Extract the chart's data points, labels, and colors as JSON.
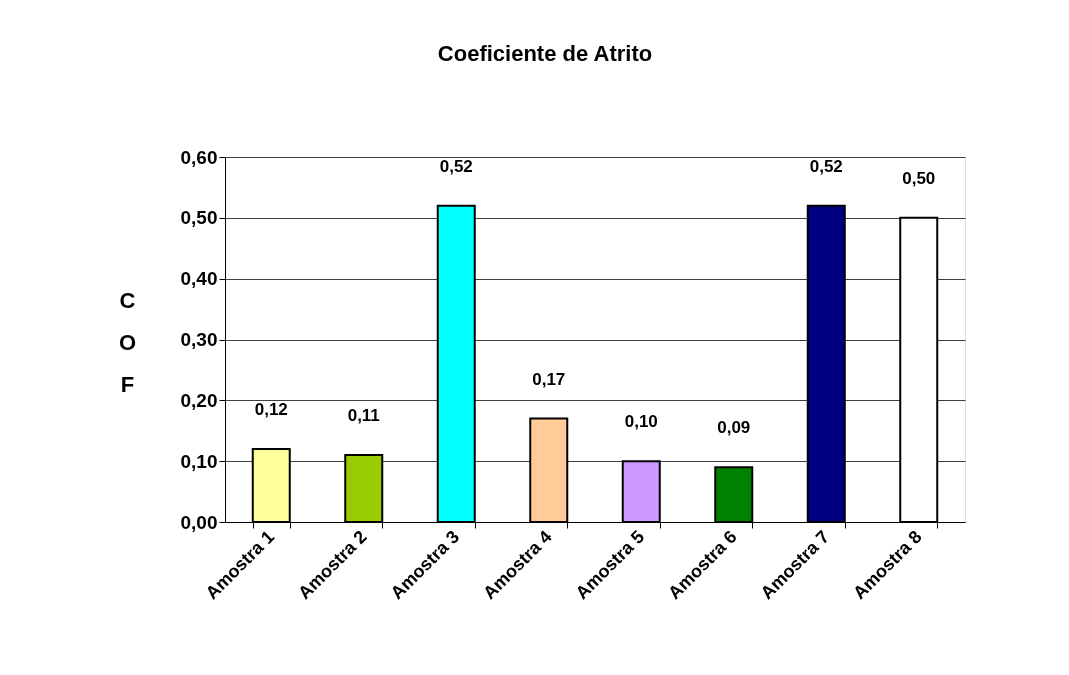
{
  "chart_data": {
    "type": "bar",
    "title": "Coeficiente de Atrito",
    "ylabel": "COF",
    "categories": [
      "Amostra 1",
      "Amostra 2",
      "Amostra 3",
      "Amostra 4",
      "Amostra 5",
      "Amostra 6",
      "Amostra 7",
      "Amostra 8"
    ],
    "values": [
      0.12,
      0.11,
      0.52,
      0.17,
      0.1,
      0.09,
      0.52,
      0.5
    ],
    "colors": [
      "#ffff99",
      "#99cc00",
      "#00ffff",
      "#ffcc99",
      "#cc99ff",
      "#008000",
      "#000080",
      "#ffffff"
    ],
    "value_labels": [
      "0,12",
      "0,11",
      "0,52",
      "0,17",
      "0,10",
      "0,09",
      "0,52",
      "0,50"
    ],
    "ylim": [
      0,
      0.6
    ],
    "yticks": [
      {
        "value": 0,
        "label": "0,00"
      },
      {
        "value": 0.1,
        "label": "0,10"
      },
      {
        "value": 0.2,
        "label": "0,20"
      },
      {
        "value": 0.3,
        "label": "0,30"
      },
      {
        "value": 0.4,
        "label": "0,40"
      },
      {
        "value": 0.5,
        "label": "0,50"
      },
      {
        "value": 0.6,
        "label": "0,60"
      }
    ],
    "grid": "y"
  }
}
